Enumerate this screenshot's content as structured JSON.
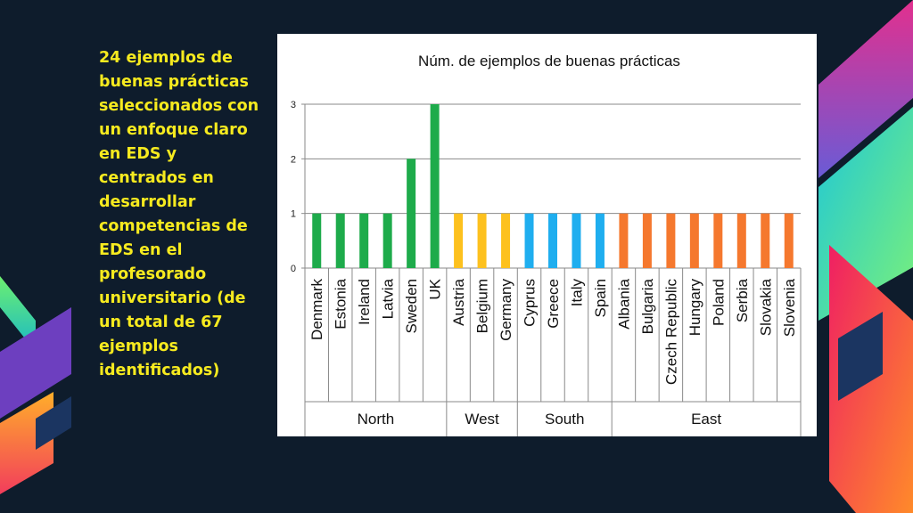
{
  "slide": {
    "text": "24 ejemplos de buenas prácticas seleccionados con un enfoque claro en EDS y centrados en desarrollar competencias de EDS en el profesorado universitario (de un total de 67 ejemplos identificados)"
  },
  "colors": {
    "background": "#0e1c2c",
    "text_highlight": "#f6ea1f",
    "North": "#1eab4b",
    "West": "#fdc11e",
    "South": "#1faeef",
    "East": "#f5782e"
  },
  "chart_data": {
    "type": "bar",
    "title": "Núm. de ejemplos de buenas prácticas",
    "xlabel": "",
    "ylabel": "",
    "ylim": [
      0,
      3
    ],
    "yticks": [
      0,
      1,
      2,
      3
    ],
    "grid": true,
    "legend": "none",
    "categories": [
      "Denmark",
      "Estonia",
      "Ireland",
      "Latvia",
      "Sweden",
      "UK",
      "Austria",
      "Belgium",
      "Germany",
      "Cyprus",
      "Greece",
      "Italy",
      "Spain",
      "Albania",
      "Bulgaria",
      "Czech Republic",
      "Hungary",
      "Poland",
      "Serbia",
      "Slovakia",
      "Slovenia"
    ],
    "groups": [
      "North",
      "North",
      "North",
      "North",
      "North",
      "North",
      "West",
      "West",
      "West",
      "South",
      "South",
      "South",
      "South",
      "East",
      "East",
      "East",
      "East",
      "East",
      "East",
      "East",
      "East"
    ],
    "values": [
      1,
      1,
      1,
      1,
      2,
      3,
      1,
      1,
      1,
      1,
      1,
      1,
      1,
      1,
      1,
      1,
      1,
      1,
      1,
      1,
      1
    ]
  }
}
